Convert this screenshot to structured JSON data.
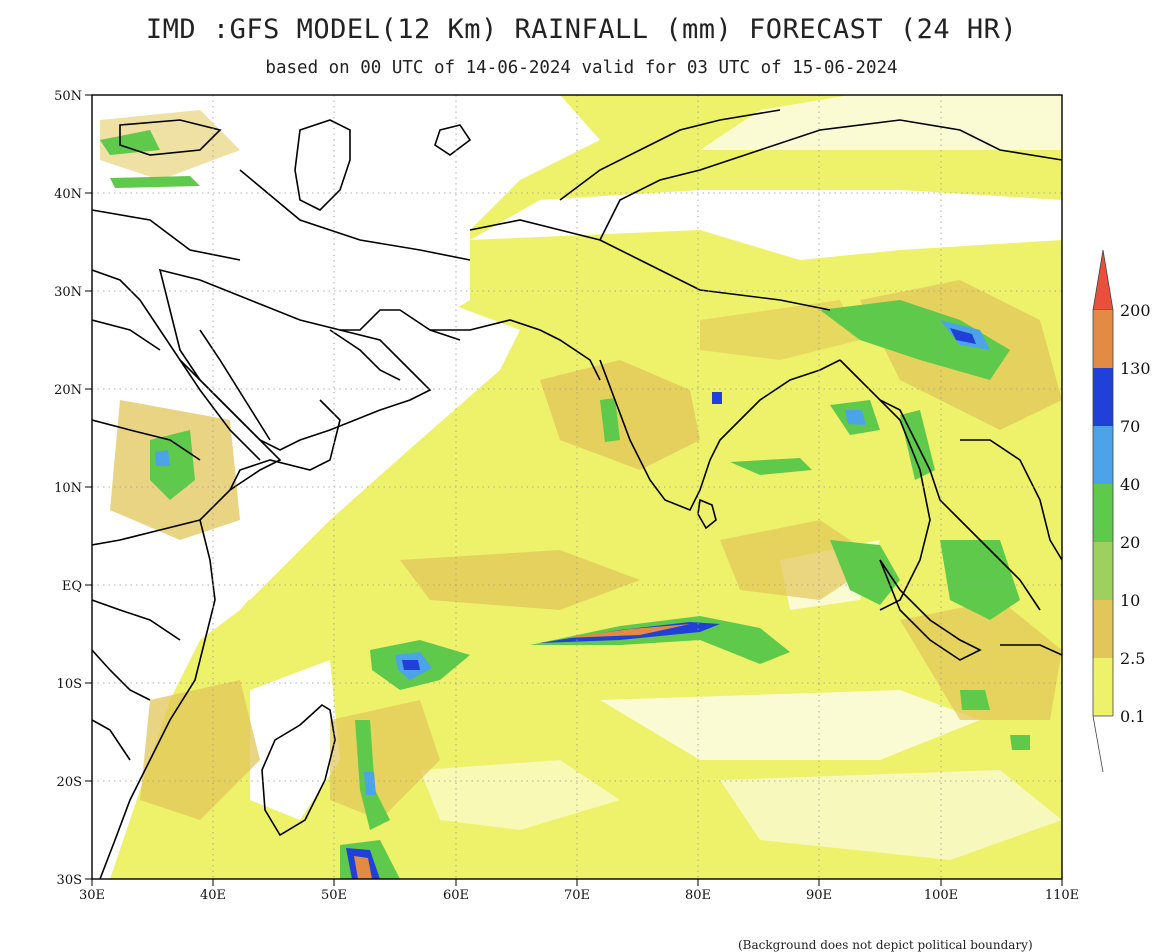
{
  "header": {
    "title": "IMD :GFS MODEL(12 Km) RAINFALL (mm) FORECAST (24 HR)",
    "subtitle": "based on 00 UTC of 14-06-2024 valid for 03 UTC of 15-06-2024"
  },
  "map": {
    "lon_range": [
      30,
      110
    ],
    "lat_range": [
      -30,
      50
    ],
    "lon_ticks": [
      "30E",
      "40E",
      "50E",
      "60E",
      "70E",
      "80E",
      "90E",
      "100E",
      "110E"
    ],
    "lat_ticks": [
      "50N",
      "40N",
      "30N",
      "20N",
      "10N",
      "EQ",
      "10S",
      "20S",
      "30S"
    ],
    "grid": true
  },
  "legend": {
    "levels": [
      "0.1",
      "2.5",
      "10",
      "20",
      "40",
      "70",
      "130",
      "200"
    ],
    "colors": {
      "0.1-2.5": "#eef26a",
      "2.5-10": "#e2c65a",
      "10-20": "#9ed060",
      "20-40": "#5ec94a",
      "40-70": "#4da3e8",
      "70-130": "#2140d8",
      "130-200": "#e38a45",
      ">200": "#e8503c"
    }
  },
  "footer": {
    "disclaimer": "(Background does not depict political boundary)"
  }
}
